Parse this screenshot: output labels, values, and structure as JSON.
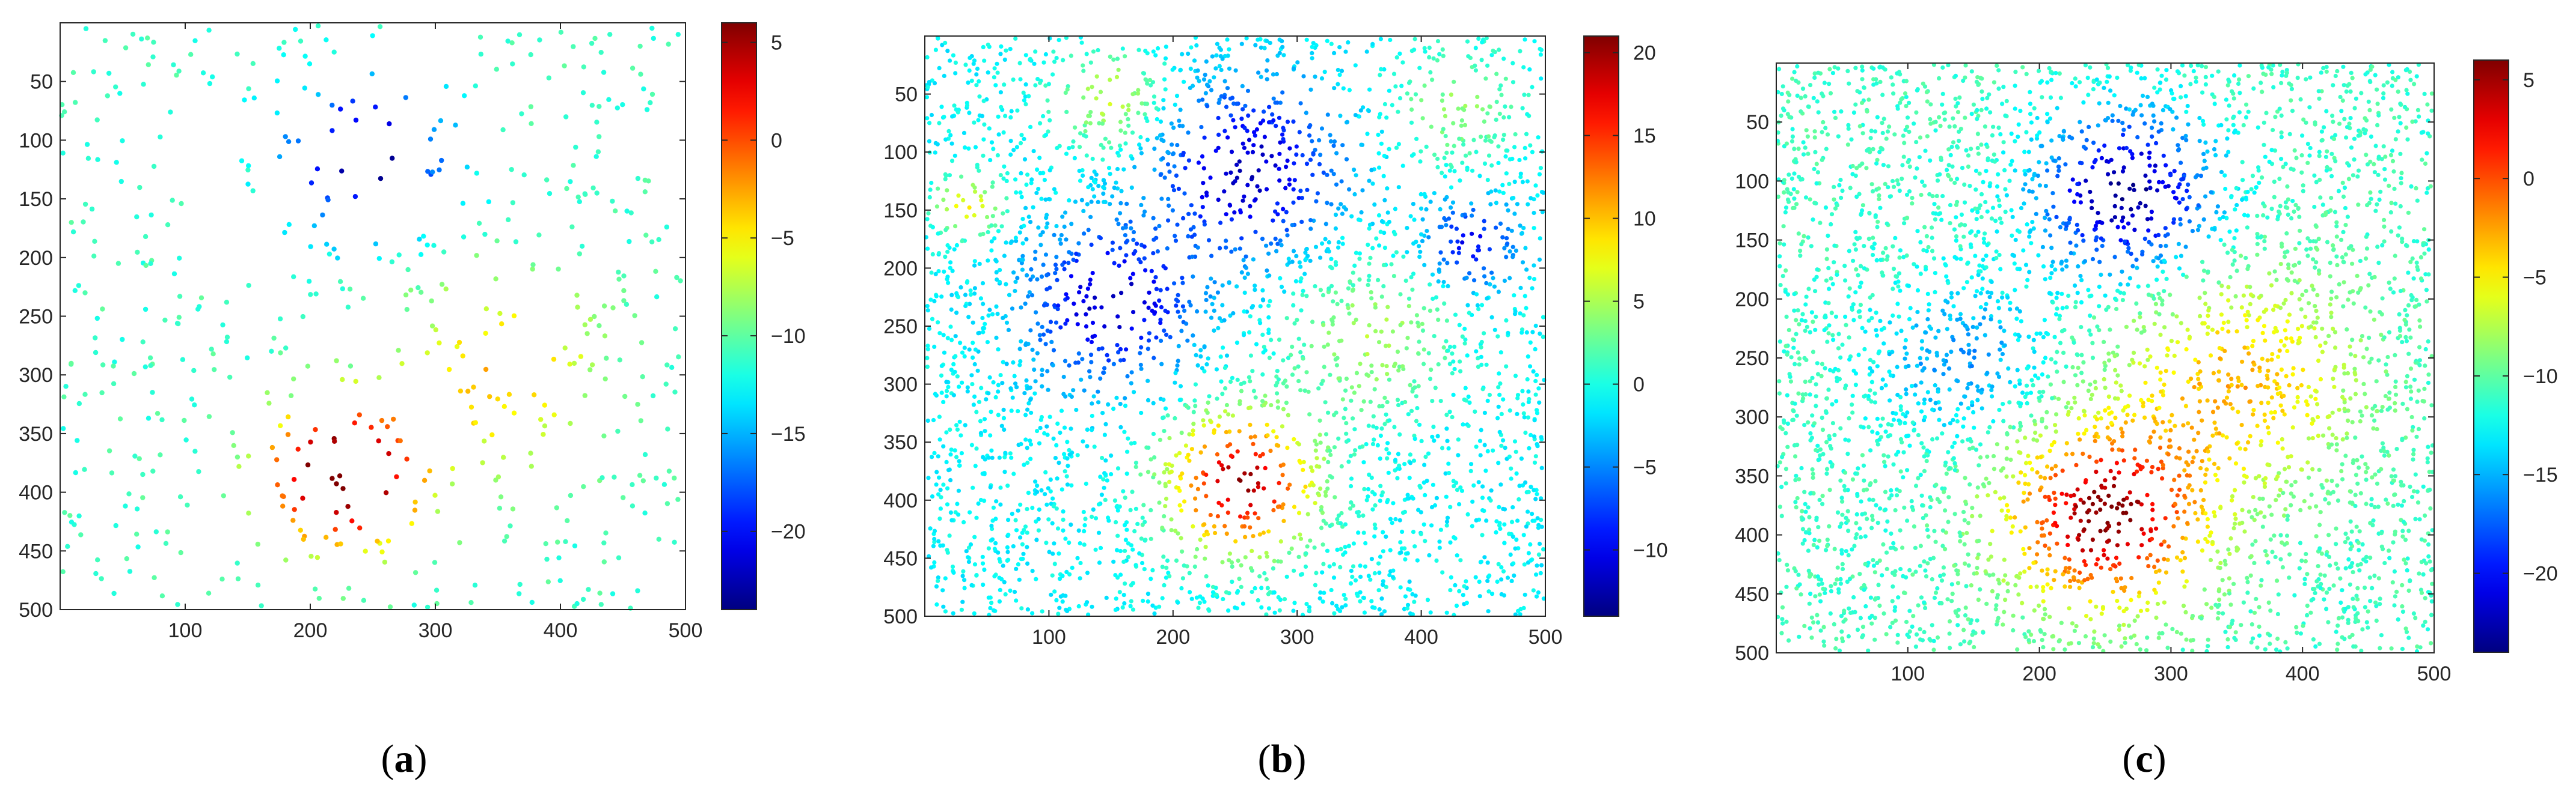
{
  "figure": {
    "colormap": "jet",
    "colormap_stops": [
      "#00008f",
      "#0000ff",
      "#00ffff",
      "#ffff00",
      "#ff0000",
      "#800000"
    ]
  },
  "chart_data": [
    {
      "type": "scatter",
      "panel_label": "a",
      "title": "",
      "xlabel": "",
      "ylabel": "",
      "xlim": [
        0,
        500
      ],
      "ylim": [
        500,
        0
      ],
      "y_reversed": true,
      "x_ticks": [
        100,
        200,
        300,
        400,
        500
      ],
      "y_ticks": [
        50,
        100,
        150,
        200,
        250,
        300,
        350,
        400,
        450,
        500
      ],
      "colorbar": {
        "range": [
          -24,
          6
        ],
        "ticks": [
          5,
          0,
          -5,
          -10,
          -15,
          -20
        ]
      },
      "point_density": "sparse",
      "approx_point_count": 600,
      "background_value": -11,
      "features": [
        {
          "kind": "low",
          "center": [
            245,
            115
          ],
          "peak_value": -24,
          "spread": 45
        },
        {
          "kind": "high",
          "center": [
            235,
            385
          ],
          "peak_value": 6,
          "spread": 40
        },
        {
          "kind": "high",
          "center": [
            350,
            300
          ],
          "peak_value": -3,
          "spread": 55
        },
        {
          "kind": "high",
          "center": [
            200,
            390
          ],
          "peak_value": -5,
          "spread": 40
        }
      ]
    },
    {
      "type": "scatter",
      "panel_label": "b",
      "title": "",
      "xlabel": "",
      "ylabel": "",
      "xlim": [
        0,
        500
      ],
      "ylim": [
        500,
        0
      ],
      "y_reversed": true,
      "x_ticks": [
        100,
        200,
        300,
        400,
        500
      ],
      "y_ticks": [
        50,
        100,
        150,
        200,
        250,
        300,
        350,
        400,
        450,
        500
      ],
      "colorbar": {
        "range": [
          -14,
          21
        ],
        "ticks": [
          20,
          15,
          10,
          5,
          0,
          -5,
          -10
        ]
      },
      "point_density": "dense",
      "approx_point_count": 3400,
      "background_value": -1,
      "features": [
        {
          "kind": "low",
          "center": [
            260,
            115
          ],
          "peak_value": -12,
          "spread": 50
        },
        {
          "kind": "low",
          "center": [
            150,
            230
          ],
          "peak_value": -12,
          "spread": 45
        },
        {
          "kind": "low",
          "center": [
            440,
            180
          ],
          "peak_value": -10,
          "spread": 25
        },
        {
          "kind": "high",
          "center": [
            255,
            385
          ],
          "peak_value": 20,
          "spread": 40
        },
        {
          "kind": "high",
          "center": [
            360,
            260
          ],
          "peak_value": 5,
          "spread": 45
        },
        {
          "kind": "high",
          "center": [
            35,
            145
          ],
          "peak_value": 8,
          "spread": 18
        },
        {
          "kind": "high",
          "center": [
            150,
            55
          ],
          "peak_value": 6,
          "spread": 30
        },
        {
          "kind": "high",
          "center": [
            430,
            60
          ],
          "peak_value": 4,
          "spread": 35
        }
      ]
    },
    {
      "type": "scatter",
      "panel_label": "c",
      "title": "",
      "xlabel": "",
      "ylabel": "",
      "xlim": [
        0,
        500
      ],
      "ylim": [
        500,
        0
      ],
      "y_reversed": true,
      "x_ticks": [
        100,
        200,
        300,
        400,
        500
      ],
      "y_ticks": [
        50,
        100,
        150,
        200,
        250,
        300,
        350,
        400,
        450,
        500
      ],
      "colorbar": {
        "range": [
          -24,
          6
        ],
        "ticks": [
          5,
          0,
          -5,
          -10,
          -15,
          -20
        ]
      },
      "point_density": "dense",
      "approx_point_count": 4200,
      "background_value": -11,
      "features": [
        {
          "kind": "low",
          "center": [
            265,
            110
          ],
          "peak_value": -24,
          "spread": 45
        },
        {
          "kind": "low",
          "center": [
            140,
            250
          ],
          "peak_value": -16,
          "spread": 45
        },
        {
          "kind": "high",
          "center": [
            250,
            385
          ],
          "peak_value": 6,
          "spread": 50
        },
        {
          "kind": "high",
          "center": [
            350,
            270
          ],
          "peak_value": -3,
          "spread": 60
        }
      ]
    }
  ]
}
